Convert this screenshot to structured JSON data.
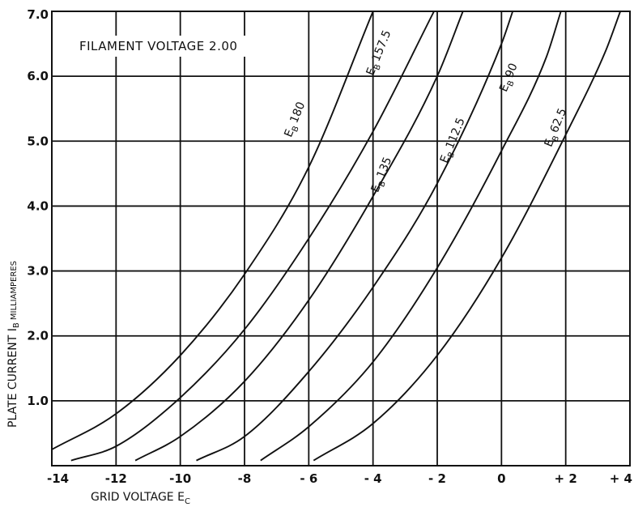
{
  "chart_data": {
    "type": "line",
    "annotation": "FILAMENT VOLTAGE 2.00",
    "xlabel": {
      "main": "GRID VOLTAGE E",
      "sub": "C"
    },
    "ylabel": {
      "main": "PLATE CURRENT I",
      "sub": "B",
      "suffix": " MILLIAMPERES"
    },
    "xlim": [
      -14,
      4
    ],
    "ylim": [
      0,
      7
    ],
    "x_ticks": [
      -14,
      -12,
      -10,
      -8,
      -6,
      -4,
      -2,
      0,
      2,
      4
    ],
    "x_tick_labels": [
      "-14",
      "-12",
      "-10",
      "-8",
      "- 6",
      "- 4",
      "- 2",
      "0",
      "+ 2",
      "+ 4"
    ],
    "y_ticks": [
      1,
      2,
      3,
      4,
      5,
      6,
      7
    ],
    "y_tick_labels": [
      "1.0",
      "2.0",
      "3.0",
      "4.0",
      "5.0",
      "6.0",
      "7.0"
    ],
    "grid": true,
    "series": [
      {
        "name": "180",
        "label": {
          "prefix": "E",
          "sub": "B",
          "value": "180"
        },
        "points": [
          [
            -14,
            0.25
          ],
          [
            -12,
            0.8
          ],
          [
            -10,
            1.7
          ],
          [
            -8,
            2.95
          ],
          [
            -6,
            4.6
          ],
          [
            -4,
            7.0
          ]
        ]
      },
      {
        "name": "157.5",
        "label": {
          "prefix": "E",
          "sub": "B",
          "value": "157.5"
        },
        "points": [
          [
            -13.4,
            0.08
          ],
          [
            -12,
            0.3
          ],
          [
            -10,
            1.05
          ],
          [
            -8,
            2.1
          ],
          [
            -6,
            3.5
          ],
          [
            -4,
            5.15
          ],
          [
            -2.1,
            7.0
          ]
        ]
      },
      {
        "name": "135",
        "label": {
          "prefix": "E",
          "sub": "B",
          "value": "135"
        },
        "points": [
          [
            -11.4,
            0.08
          ],
          [
            -10,
            0.45
          ],
          [
            -8,
            1.3
          ],
          [
            -6,
            2.55
          ],
          [
            -4,
            4.15
          ],
          [
            -2,
            6.0
          ],
          [
            -1.2,
            7.0
          ]
        ]
      },
      {
        "name": "112.5",
        "label": {
          "prefix": "E",
          "sub": "B",
          "value": "112.5"
        },
        "points": [
          [
            -9.5,
            0.08
          ],
          [
            -8,
            0.45
          ],
          [
            -6,
            1.45
          ],
          [
            -4,
            2.75
          ],
          [
            -2,
            4.35
          ],
          [
            0,
            6.5
          ],
          [
            0.35,
            7.0
          ]
        ]
      },
      {
        "name": "90",
        "label": {
          "prefix": "E",
          "sub": "B",
          "value": "90"
        },
        "points": [
          [
            -7.5,
            0.08
          ],
          [
            -6,
            0.6
          ],
          [
            -4,
            1.6
          ],
          [
            -2,
            3.05
          ],
          [
            0,
            4.85
          ],
          [
            1.4,
            6.3
          ],
          [
            1.85,
            7.0
          ]
        ]
      },
      {
        "name": "62.5",
        "label": {
          "prefix": "E",
          "sub": "B",
          "value": "62.5"
        },
        "points": [
          [
            -5.85,
            0.08
          ],
          [
            -4,
            0.65
          ],
          [
            -2,
            1.7
          ],
          [
            0,
            3.2
          ],
          [
            2,
            5.1
          ],
          [
            3.25,
            6.4
          ],
          [
            3.7,
            7.0
          ]
        ]
      }
    ]
  }
}
